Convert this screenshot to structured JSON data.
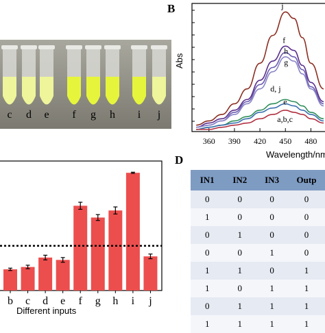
{
  "panels": {
    "b": "B",
    "d": "D"
  },
  "photo": {
    "tube_labels": [
      "c",
      "d",
      "e",
      "f",
      "g",
      "h",
      "i",
      "j"
    ],
    "colors": {
      "background": "#8c8a80",
      "light": "#eef59a",
      "bright": "#e6f53c",
      "glass": "#d8d8d4"
    }
  },
  "chart_data": [
    {
      "type": "line",
      "xlabel": "Wavelength/nm",
      "ylabel": "Abs",
      "xticks": [
        "360",
        "390",
        "420",
        "450",
        "480"
      ],
      "xlim": [
        340,
        495
      ],
      "ylim": [
        0,
        0.6
      ],
      "series": [
        {
          "name": "j",
          "color": "#8b2e22",
          "x": [
            345,
            360,
            375,
            390,
            405,
            420,
            435,
            450,
            460,
            470,
            480,
            495
          ],
          "y": [
            0.03,
            0.05,
            0.08,
            0.13,
            0.2,
            0.32,
            0.45,
            0.56,
            0.53,
            0.44,
            0.32,
            0.2
          ]
        },
        {
          "name": "f",
          "color": "#5a2e8a",
          "x": [
            345,
            360,
            375,
            390,
            405,
            420,
            435,
            450,
            460,
            470,
            480,
            495
          ],
          "y": [
            0.02,
            0.04,
            0.06,
            0.1,
            0.15,
            0.24,
            0.33,
            0.4,
            0.38,
            0.31,
            0.23,
            0.14
          ]
        },
        {
          "name": "h",
          "color": "#6a5cb0",
          "x": [
            345,
            360,
            375,
            390,
            405,
            420,
            435,
            450,
            460,
            470,
            480,
            495
          ],
          "y": [
            0.02,
            0.03,
            0.05,
            0.09,
            0.14,
            0.22,
            0.3,
            0.37,
            0.35,
            0.29,
            0.21,
            0.13
          ]
        },
        {
          "name": "g",
          "color": "#8a85c6",
          "x": [
            345,
            360,
            375,
            390,
            405,
            420,
            435,
            450,
            460,
            470,
            480,
            495
          ],
          "y": [
            0.02,
            0.03,
            0.05,
            0.08,
            0.13,
            0.2,
            0.28,
            0.35,
            0.33,
            0.27,
            0.2,
            0.12
          ]
        },
        {
          "name": "d, j",
          "color": "#2f8f5a",
          "x": [
            345,
            360,
            375,
            390,
            405,
            420,
            435,
            450,
            460,
            470,
            480,
            495
          ],
          "y": [
            0.01,
            0.02,
            0.03,
            0.05,
            0.07,
            0.1,
            0.13,
            0.15,
            0.14,
            0.12,
            0.09,
            0.06
          ]
        },
        {
          "name": "e",
          "color": "#3a6fb0",
          "x": [
            345,
            360,
            375,
            390,
            405,
            420,
            435,
            450,
            460,
            470,
            480,
            495
          ],
          "y": [
            0.01,
            0.02,
            0.03,
            0.04,
            0.06,
            0.09,
            0.11,
            0.13,
            0.12,
            0.1,
            0.08,
            0.05
          ]
        },
        {
          "name": "a,b,c",
          "color": "#b03040",
          "x": [
            345,
            360,
            375,
            390,
            405,
            420,
            435,
            450,
            460,
            470,
            480,
            495
          ],
          "y": [
            0.01,
            0.01,
            0.02,
            0.03,
            0.04,
            0.06,
            0.08,
            0.1,
            0.09,
            0.08,
            0.06,
            0.04
          ]
        }
      ],
      "annotations": [
        "j",
        "f",
        "h",
        "g",
        "d, j",
        "e",
        "a,b,c"
      ]
    },
    {
      "type": "bar",
      "xlabel": "Different  inputs",
      "categories": [
        "b",
        "c",
        "d",
        "e",
        "f",
        "g",
        "h",
        "i",
        "j"
      ],
      "values": [
        0.18,
        0.2,
        0.28,
        0.26,
        0.72,
        0.62,
        0.68,
        1.0,
        0.29
      ],
      "errors": [
        0.01,
        0.015,
        0.02,
        0.02,
        0.03,
        0.025,
        0.03,
        0.005,
        0.02
      ],
      "threshold": 0.38,
      "ylim": [
        0,
        1.1
      ],
      "color": "#ec4e4e"
    }
  ],
  "truth_table": {
    "headers": [
      "IN1",
      "IN2",
      "IN3",
      "Outp"
    ],
    "rows": [
      [
        "0",
        "0",
        "0",
        "0"
      ],
      [
        "1",
        "0",
        "0",
        "0"
      ],
      [
        "0",
        "1",
        "0",
        "0"
      ],
      [
        "0",
        "0",
        "1",
        "0"
      ],
      [
        "1",
        "1",
        "0",
        "1"
      ],
      [
        "1",
        "0",
        "1",
        "1"
      ],
      [
        "0",
        "1",
        "1",
        "1"
      ],
      [
        "1",
        "1",
        "1",
        "1"
      ]
    ]
  }
}
